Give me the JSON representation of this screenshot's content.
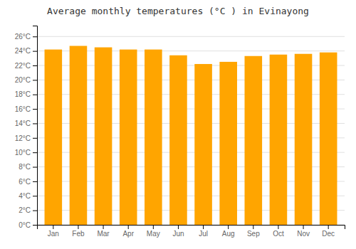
{
  "chart_data": {
    "type": "bar",
    "title": "Average monthly temperatures (°C ) in Evinayong",
    "categories": [
      "Jan",
      "Feb",
      "Mar",
      "Apr",
      "May",
      "Jun",
      "Jul",
      "Aug",
      "Sep",
      "Oct",
      "Nov",
      "Dec"
    ],
    "values": [
      24.2,
      24.7,
      24.5,
      24.2,
      24.2,
      23.4,
      22.2,
      22.5,
      23.3,
      23.5,
      23.6,
      23.8
    ],
    "color": "#FFA500",
    "ylim": [
      0,
      27.5
    ],
    "yticks": [
      {
        "value": 0,
        "label": "0°C"
      },
      {
        "value": 2,
        "label": "2°C"
      },
      {
        "value": 4,
        "label": "4°C"
      },
      {
        "value": 6,
        "label": "6°C"
      },
      {
        "value": 8,
        "label": "8°C"
      },
      {
        "value": 10,
        "label": "10°C"
      },
      {
        "value": 12,
        "label": "12°C"
      },
      {
        "value": 14,
        "label": "14°C"
      },
      {
        "value": 16,
        "label": "16°C"
      },
      {
        "value": 18,
        "label": "18°C"
      },
      {
        "value": 20,
        "label": "20°C"
      },
      {
        "value": 22,
        "label": "22°C"
      },
      {
        "value": 24,
        "label": "24°C"
      },
      {
        "value": 26,
        "label": "26°C"
      }
    ],
    "grid": true
  }
}
